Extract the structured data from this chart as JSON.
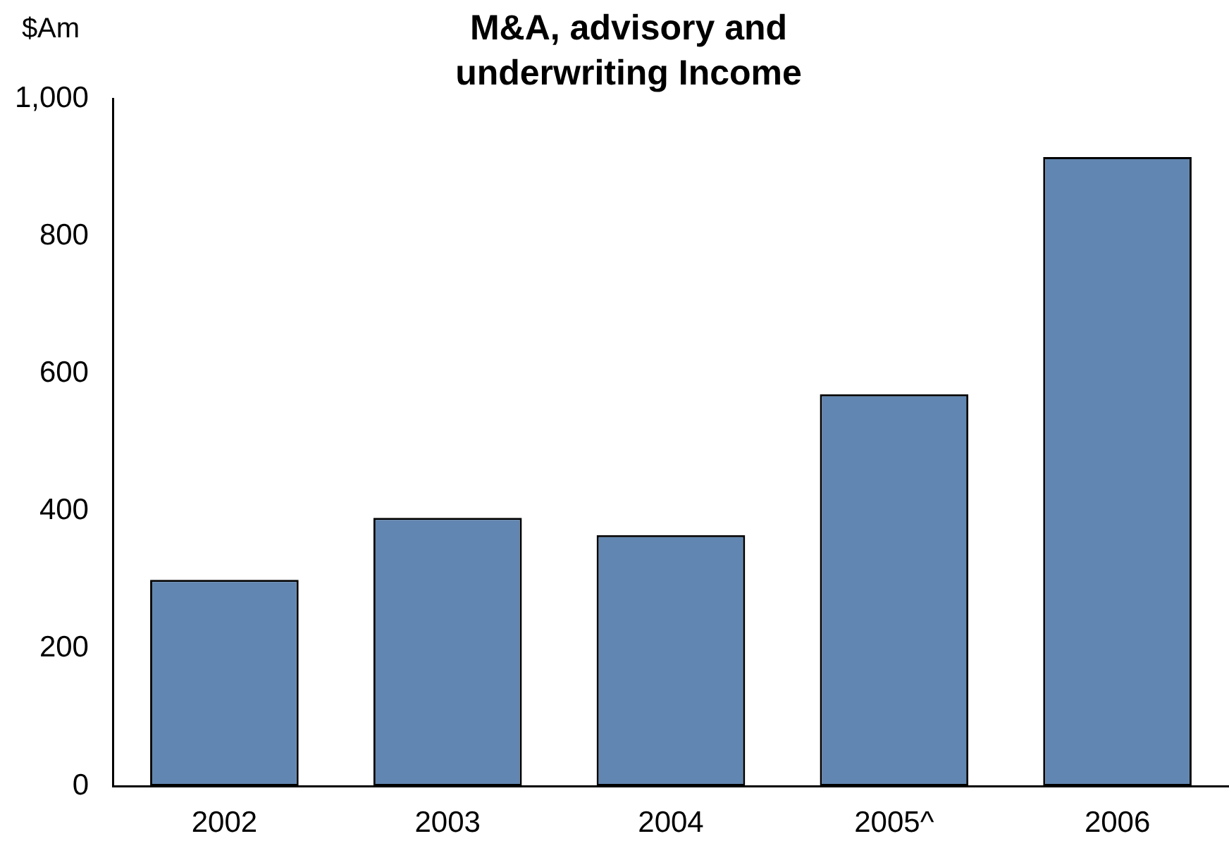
{
  "chart_data": {
    "type": "bar",
    "title": "M&A, advisory and underwriting Income",
    "ylabel": "$Am",
    "categories": [
      "2002",
      "2003",
      "2004",
      "2005^",
      "2006"
    ],
    "values": [
      300,
      390,
      365,
      570,
      915
    ],
    "color": "#6186b1",
    "ylim": [
      0,
      1000
    ],
    "yticks": [
      0,
      200,
      400,
      600,
      800,
      {
        "value": 1000,
        "label": "1,000"
      }
    ],
    "grid": false,
    "legend": false
  }
}
